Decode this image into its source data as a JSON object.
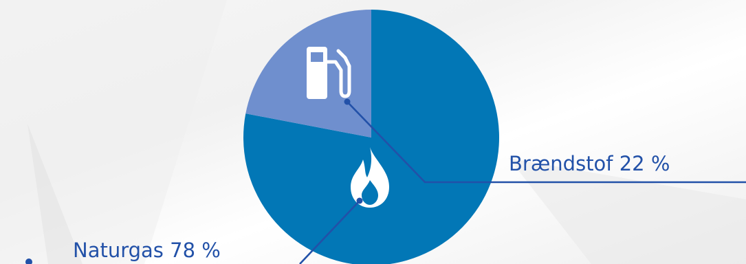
{
  "chart_data": {
    "type": "pie",
    "title": "",
    "slices": [
      {
        "label": "Naturgas 78 %",
        "value": 78,
        "color": "#0277b6",
        "icon": "flame-icon"
      },
      {
        "label": "Brændstof 22 %",
        "value": 22,
        "color": "#6f8fce",
        "icon": "fuel-pump-icon"
      }
    ],
    "start_angle_deg": 0,
    "direction": "clockwise",
    "legend": "none",
    "annotations": "callout labels with leader lines"
  },
  "colors": {
    "leader": "#2251a8",
    "label_text": "#2251a8",
    "icon": "#ffffff"
  }
}
